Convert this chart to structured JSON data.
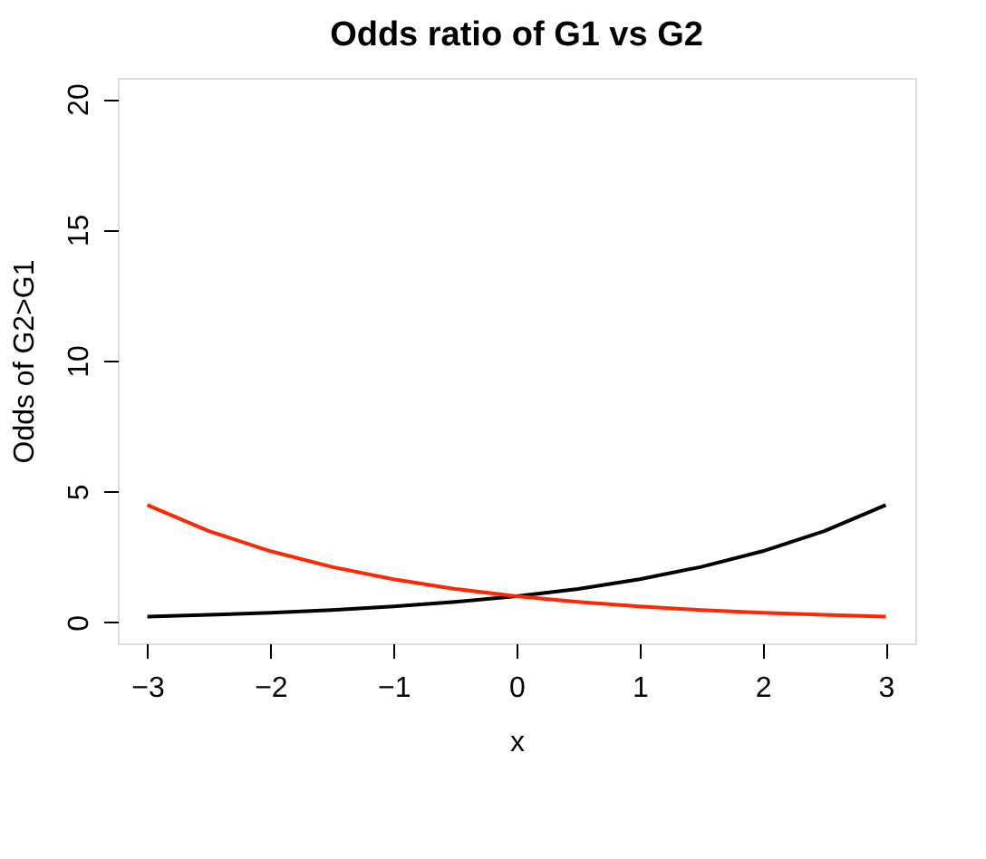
{
  "chart_data": {
    "type": "line",
    "title": "Odds ratio of G1 vs G2",
    "xlabel": "x",
    "ylabel": "Odds of G2>G1",
    "x": [
      -3,
      -2.5,
      -2,
      -1.5,
      -1,
      -0.5,
      0,
      0.5,
      1,
      1.5,
      2,
      2.5,
      3
    ],
    "series": [
      {
        "color": "#000000",
        "values": [
          0.22,
          0.29,
          0.37,
          0.47,
          0.61,
          0.78,
          1,
          1.28,
          1.65,
          2.12,
          2.72,
          3.49,
          4.48
        ]
      },
      {
        "color": "#ff2600",
        "values": [
          4.48,
          3.49,
          2.72,
          2.12,
          1.65,
          1.28,
          1,
          0.78,
          0.61,
          0.47,
          0.37,
          0.29,
          0.22
        ]
      }
    ],
    "xlim": [
      -3.24,
      3.24
    ],
    "xticks": [
      -3,
      -2,
      -1,
      0,
      1,
      2,
      3
    ],
    "ylim": [
      -0.8,
      20.8
    ],
    "yticks": [
      0,
      5,
      10,
      15,
      20
    ],
    "grid": false,
    "legend": false,
    "marker": "none",
    "line_style": "solid"
  }
}
